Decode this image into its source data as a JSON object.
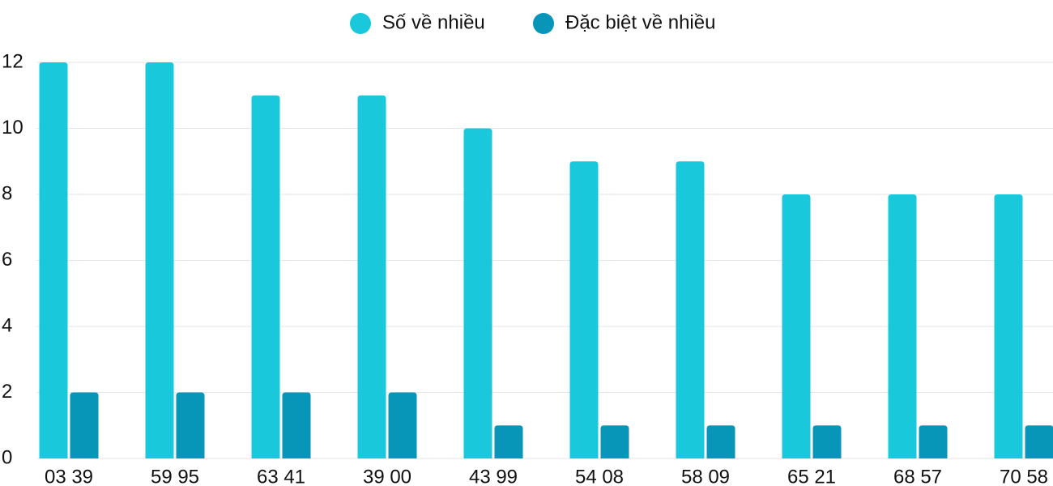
{
  "chart_data": {
    "type": "bar",
    "categories": [
      "03 39",
      "59 95",
      "63 41",
      "39 00",
      "43 99",
      "54 08",
      "58 09",
      "65 21",
      "68 57",
      "70 58"
    ],
    "series": [
      {
        "name": "Số về nhiều",
        "color": "#1ac8db",
        "values": [
          12,
          12,
          11,
          11,
          10,
          9,
          9,
          8,
          8,
          8
        ]
      },
      {
        "name": "Đặc biệt về nhiều",
        "color": "#0795b8",
        "values": [
          2,
          2,
          2,
          2,
          1,
          1,
          1,
          1,
          1,
          1
        ]
      }
    ],
    "ylim": [
      0,
      12
    ],
    "yticks": [
      0,
      2,
      4,
      6,
      8,
      10,
      12
    ],
    "grid": true,
    "legend": "top"
  }
}
